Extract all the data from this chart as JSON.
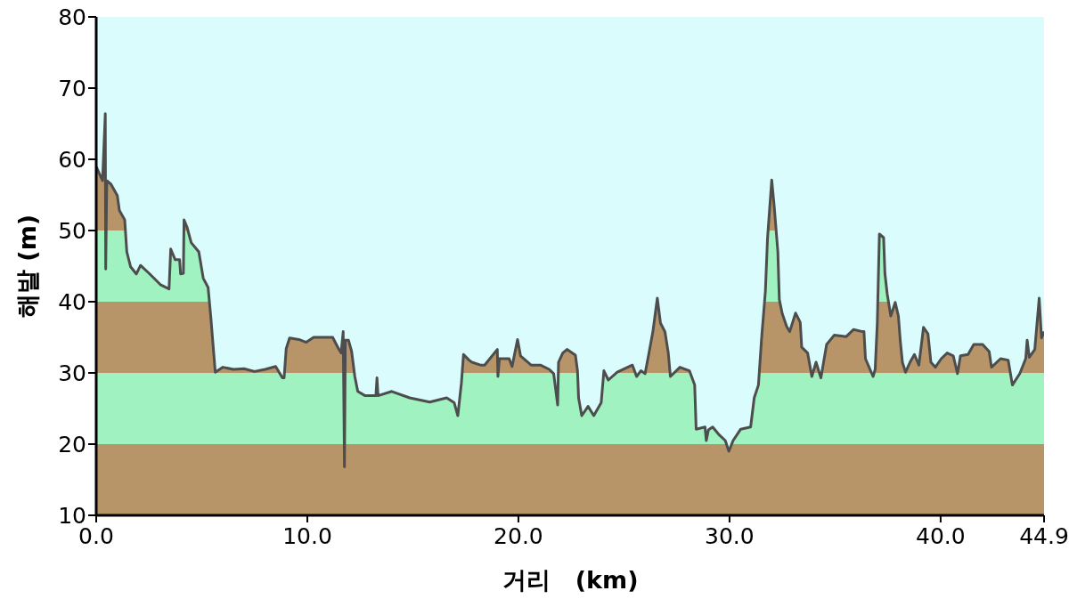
{
  "chart_data": {
    "type": "area",
    "xlabel": "거리   (km)",
    "ylabel": "해발 (m)",
    "xlim": [
      0,
      44.9
    ],
    "xticks": [
      {
        "value": 0,
        "label": "0.0"
      },
      {
        "value": 10,
        "label": "10.0"
      },
      {
        "value": 20,
        "label": "20.0"
      },
      {
        "value": 30,
        "label": "30.0"
      },
      {
        "value": 40,
        "label": "40.0"
      },
      {
        "value": 44.9,
        "label": "44.9"
      }
    ],
    "ylim": [
      10,
      80
    ],
    "yticks": [
      10,
      20,
      30,
      40,
      50,
      60,
      70,
      80
    ],
    "bands": [
      {
        "axis": "y",
        "from": 10,
        "to": 20,
        "color": "#b89469"
      },
      {
        "axis": "y",
        "from": 20,
        "to": 30,
        "color": "#a0f2c0"
      },
      {
        "axis": "y",
        "from": 30,
        "to": 40,
        "color": "#b89469"
      },
      {
        "axis": "y",
        "from": 40,
        "to": 50,
        "color": "#a0f2c0"
      },
      {
        "axis": "y",
        "from": 50,
        "to": 60,
        "color": "#b89469"
      }
    ],
    "x": [
      0,
      0.3,
      0.43,
      0.45,
      0.5,
      0.7,
      1.0,
      1.1,
      1.35,
      1.45,
      1.63,
      1.9,
      2.1,
      2.5,
      3.04,
      3.45,
      3.53,
      3.74,
      3.95,
      4.0,
      4.13,
      4.16,
      4.3,
      4.5,
      4.86,
      5.07,
      5.3,
      5.43,
      5.64,
      6.0,
      6.5,
      7.0,
      7.5,
      8.0,
      8.5,
      8.82,
      8.9,
      9.0,
      9.16,
      9.6,
      9.95,
      10.3,
      11.2,
      11.48,
      11.6,
      11.7,
      11.76,
      11.8,
      11.95,
      12.1,
      12.25,
      12.39,
      12.74,
      13.25,
      13.3,
      13.35,
      14.0,
      14.85,
      15.8,
      16.6,
      16.96,
      17.13,
      17.3,
      17.4,
      17.66,
      17.8,
      18.2,
      18.4,
      19.0,
      19.03,
      19.1,
      19.56,
      19.7,
      19.96,
      20.1,
      20.6,
      21.04,
      21.46,
      21.67,
      21.86,
      21.9,
      22.1,
      22.3,
      22.7,
      22.8,
      22.85,
      23.0,
      23.3,
      23.57,
      23.92,
      24.05,
      24.26,
      24.68,
      25.4,
      25.6,
      25.8,
      26.0,
      26.16,
      26.37,
      26.58,
      26.73,
      26.94,
      27.1,
      27.2,
      27.65,
      28.1,
      28.35,
      28.42,
      28.84,
      28.9,
      29.0,
      29.2,
      29.48,
      29.8,
      29.97,
      30.17,
      30.53,
      31.0,
      31.17,
      31.37,
      31.52,
      31.7,
      31.8,
      32.0,
      32.12,
      32.29,
      32.36,
      32.5,
      32.71,
      32.85,
      33.13,
      33.35,
      33.42,
      33.7,
      33.9,
      34.1,
      34.33,
      34.6,
      34.96,
      35.53,
      35.88,
      36.3,
      36.37,
      36.44,
      36.8,
      36.9,
      37.0,
      37.1,
      37.3,
      37.36,
      37.47,
      37.64,
      37.85,
      38.0,
      38.09,
      38.19,
      38.34,
      38.55,
      38.76,
      38.97,
      39.19,
      39.4,
      39.54,
      39.75,
      40.03,
      40.31,
      40.6,
      40.8,
      40.94,
      41.3,
      41.57,
      41.99,
      42.3,
      42.41,
      42.84,
      43.2,
      43.4,
      43.75,
      44.03,
      44.1,
      44.2,
      44.46,
      44.67,
      44.78,
      44.9
    ],
    "series": [
      {
        "color": "#4d4d4d",
        "values": [
          59,
          57,
          66.4,
          44.6,
          57,
          56.5,
          54.9,
          52.8,
          51.5,
          47,
          44.9,
          43.9,
          45.1,
          44,
          42.4,
          41.8,
          47.4,
          45.9,
          45.9,
          43.9,
          44,
          51.5,
          50.5,
          48.3,
          47,
          43.3,
          42,
          37.8,
          30.1,
          30.8,
          30.5,
          30.6,
          30.2,
          30.5,
          30.9,
          29.3,
          29.3,
          33.4,
          34.9,
          34.7,
          34.3,
          35,
          35,
          33.4,
          32.8,
          35.8,
          16.8,
          34.6,
          34.6,
          33,
          29.5,
          27.4,
          26.8,
          26.8,
          29.3,
          26.8,
          27.4,
          26.5,
          25.9,
          26.5,
          25.8,
          24,
          28.6,
          32.6,
          31.8,
          31.5,
          31.1,
          31.1,
          33.3,
          29.5,
          32,
          32,
          30.9,
          34.7,
          32.4,
          31.1,
          31.1,
          30.5,
          29.9,
          25.5,
          31.5,
          32.8,
          33.3,
          32.5,
          30.3,
          26.5,
          24,
          25.3,
          24,
          25.8,
          30.3,
          29,
          30.1,
          31.1,
          29.5,
          30.3,
          29.9,
          32.4,
          35.8,
          40.5,
          37,
          35.8,
          32.8,
          29.5,
          30.8,
          30.3,
          28.3,
          22.1,
          22.4,
          20.5,
          22,
          22.4,
          21.4,
          20.5,
          19,
          20.5,
          22.1,
          22.4,
          26.5,
          28.3,
          34.9,
          41.5,
          48.9,
          57.1,
          53.3,
          47,
          40.3,
          38.3,
          36.5,
          35.8,
          38.4,
          37.1,
          33.6,
          32.8,
          29.5,
          31.5,
          29.3,
          34,
          35.3,
          35.1,
          36.1,
          35.8,
          35.8,
          32,
          29.5,
          30.5,
          37,
          49.5,
          49,
          44,
          41.1,
          38,
          39.9,
          38,
          34.5,
          31.5,
          30.1,
          31.5,
          32.6,
          31.1,
          36.4,
          35.5,
          31.5,
          30.8,
          32,
          32.8,
          32.4,
          29.9,
          32.4,
          32.6,
          34,
          34,
          33,
          30.8,
          32,
          31.8,
          28.3,
          29.9,
          32,
          34.6,
          32.2,
          33.3,
          40.5,
          34.9,
          35.8
        ]
      }
    ]
  }
}
